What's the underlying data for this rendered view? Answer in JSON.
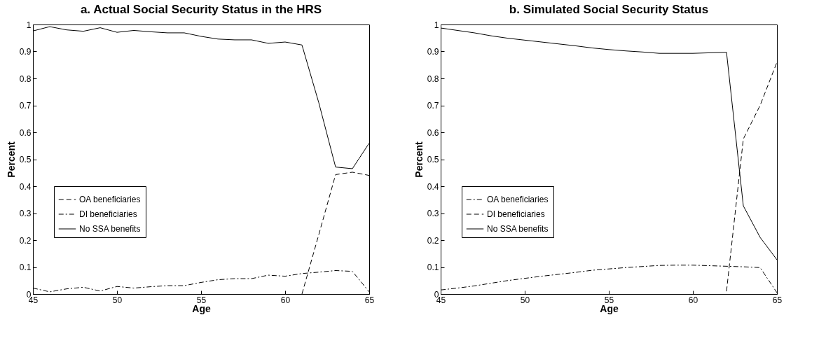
{
  "chart_data": [
    {
      "type": "line",
      "title": "a. Actual Social Security Status in the HRS",
      "xlabel": "Age",
      "ylabel": "Percent",
      "x": [
        45,
        46,
        47,
        48,
        49,
        50,
        51,
        52,
        53,
        54,
        55,
        56,
        57,
        58,
        59,
        60,
        61,
        62,
        63,
        64,
        65
      ],
      "xlim": [
        45,
        65
      ],
      "xticks": [
        45,
        50,
        55,
        60,
        65
      ],
      "ylim": [
        0,
        1
      ],
      "yticks": [
        0,
        0.1,
        0.2,
        0.3,
        0.4,
        0.5,
        0.6,
        0.7,
        0.8,
        0.9,
        1
      ],
      "legend": "left",
      "grid": false,
      "marker": "none",
      "series": [
        {
          "name": "OA beneficiaries",
          "color": "#000000",
          "line_style": "dashed",
          "values": [
            null,
            null,
            null,
            null,
            null,
            null,
            null,
            null,
            null,
            null,
            null,
            null,
            null,
            null,
            null,
            null,
            0,
            0.22,
            0.443,
            0.452,
            0.44
          ]
        },
        {
          "name": "DI beneficiaries",
          "color": "#000000",
          "line_style": "dashdot",
          "values": [
            0.022,
            0.008,
            0.019,
            0.025,
            0.011,
            0.028,
            0.022,
            0.027,
            0.031,
            0.031,
            0.043,
            0.053,
            0.057,
            0.057,
            0.07,
            0.066,
            0.076,
            0.081,
            0.087,
            0.084,
            0.008
          ]
        },
        {
          "name": "No SSA benefits",
          "color": "#000000",
          "line_style": "solid",
          "values": [
            0.976,
            0.992,
            0.98,
            0.975,
            0.988,
            0.971,
            0.978,
            0.973,
            0.969,
            0.969,
            0.956,
            0.946,
            0.943,
            0.943,
            0.93,
            0.935,
            0.924,
            0.71,
            0.471,
            0.465,
            0.56
          ]
        }
      ]
    },
    {
      "type": "line",
      "title": "b. Simulated Social Security Status",
      "xlabel": "Age",
      "ylabel": "Percent",
      "x": [
        45,
        46,
        47,
        48,
        49,
        50,
        51,
        52,
        53,
        54,
        55,
        56,
        57,
        58,
        59,
        60,
        61,
        62,
        63,
        64,
        65
      ],
      "xlim": [
        45,
        65
      ],
      "xticks": [
        45,
        50,
        55,
        60,
        65
      ],
      "ylim": [
        0,
        1
      ],
      "yticks": [
        0,
        0.1,
        0.2,
        0.3,
        0.4,
        0.5,
        0.6,
        0.7,
        0.8,
        0.9,
        1
      ],
      "legend": "left",
      "grid": false,
      "marker": "none",
      "series": [
        {
          "name": "OA beneficiaries",
          "color": "#000000",
          "line_style": "dashdot",
          "values": [
            0.015,
            0.022,
            0.03,
            0.04,
            0.05,
            0.058,
            0.066,
            0.073,
            0.08,
            0.088,
            0.093,
            0.098,
            0.102,
            0.106,
            0.107,
            0.107,
            0.105,
            0.103,
            0.101,
            0.098,
            0.005
          ]
        },
        {
          "name": "DI beneficiaries",
          "color": "#000000",
          "line_style": "dashed",
          "values": [
            null,
            null,
            null,
            null,
            null,
            null,
            null,
            null,
            null,
            null,
            null,
            null,
            null,
            null,
            null,
            null,
            null,
            0.01,
            0.575,
            0.7,
            0.86
          ]
        },
        {
          "name": "No SSA benefits",
          "color": "#000000",
          "line_style": "solid",
          "values": [
            0.987,
            0.978,
            0.969,
            0.958,
            0.949,
            0.942,
            0.935,
            0.928,
            0.921,
            0.913,
            0.907,
            0.902,
            0.898,
            0.893,
            0.893,
            0.893,
            0.895,
            0.897,
            0.327,
            0.21,
            0.127
          ]
        }
      ]
    }
  ]
}
